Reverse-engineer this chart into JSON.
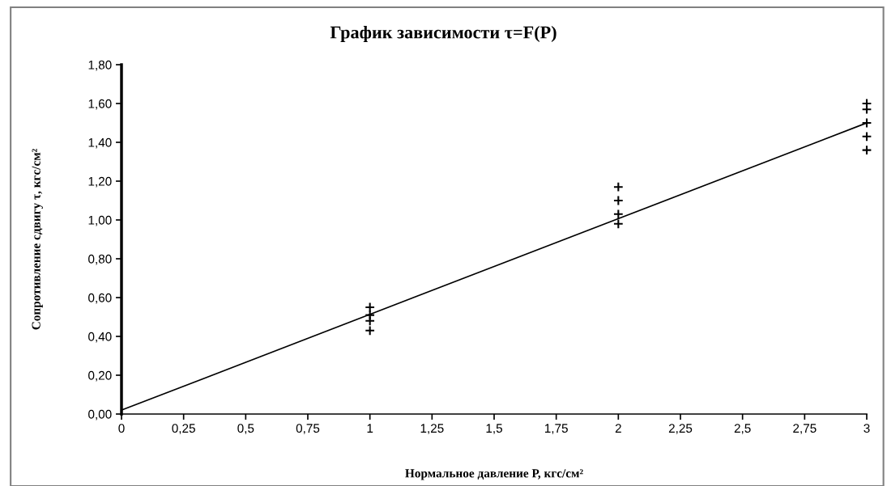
{
  "chart_data": {
    "type": "scatter",
    "title": "График зависимости τ=F(P)",
    "xlabel": "Нормальное давление Р, кгс/см²",
    "ylabel": "Сопротивление сдвигу τ, кгс/см²",
    "series": [
      {
        "color": "#000000",
        "marker": "cross",
        "x": [
          1,
          1,
          1,
          1,
          2,
          2,
          2,
          2,
          3,
          3,
          3,
          3,
          3
        ],
        "values": [
          0.55,
          0.51,
          0.48,
          0.43,
          1.17,
          1.1,
          1.03,
          0.98,
          1.6,
          1.57,
          1.5,
          1.43,
          1.36
        ]
      },
      {
        "type": "line",
        "color": "#000000",
        "marker": "none",
        "line_style": "solid",
        "x": [
          0,
          3
        ],
        "values": [
          0.02,
          1.5
        ]
      }
    ],
    "xlim": [
      0,
      3
    ],
    "ylim": [
      0,
      1.8
    ],
    "xticks": [
      0,
      {
        "value": 0.25,
        "label": "0,25"
      },
      {
        "value": 0.5,
        "label": "0,5"
      },
      {
        "value": 0.75,
        "label": "0,75"
      },
      1,
      {
        "value": 1.25,
        "label": "1,25"
      },
      {
        "value": 1.5,
        "label": "1,5"
      },
      {
        "value": 1.75,
        "label": "1,75"
      },
      2,
      {
        "value": 2.25,
        "label": "2,25"
      },
      {
        "value": 2.5,
        "label": "2,5"
      },
      {
        "value": 2.75,
        "label": "2,75"
      },
      3
    ],
    "yticks": [
      {
        "value": 0,
        "label": "0,00"
      },
      {
        "value": 0.2,
        "label": "0,20"
      },
      {
        "value": 0.4,
        "label": "0,40"
      },
      {
        "value": 0.6,
        "label": "0,60"
      },
      {
        "value": 0.8,
        "label": "0,80"
      },
      {
        "value": 1.0,
        "label": "1,00"
      },
      {
        "value": 1.2,
        "label": "1,20"
      },
      {
        "value": 1.4,
        "label": "1,40"
      },
      {
        "value": 1.6,
        "label": "1,60"
      },
      {
        "value": 1.8,
        "label": "1,80"
      }
    ],
    "grid": false,
    "legend": false
  }
}
